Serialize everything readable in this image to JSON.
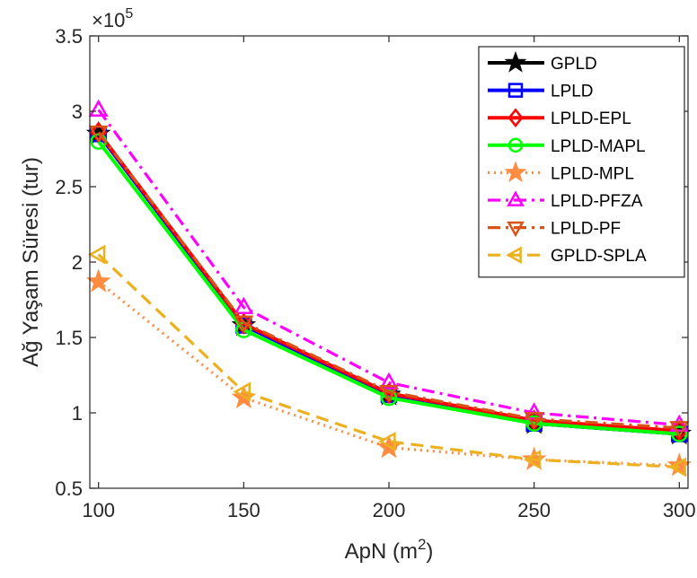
{
  "chart_data": {
    "type": "line",
    "xlabel": "ApN (m",
    "xlabel_sup": "2",
    "xlabel_suffix": ")",
    "ylabel": "Ağ Yaşam Süresi (tur)",
    "y_exponent_label": "×10",
    "y_exponent_power": "5",
    "x": [
      100,
      150,
      200,
      250,
      300
    ],
    "x_ticks": [
      100,
      150,
      200,
      250,
      300
    ],
    "y_ticks": [
      0.5,
      1,
      1.5,
      2,
      2.5,
      3,
      3.5
    ],
    "xlim": [
      97,
      303
    ],
    "ylim": [
      0.5,
      3.5
    ],
    "legend_location": "top-right",
    "grid": false,
    "series": [
      {
        "name": "GPLD",
        "values": [
          2.85,
          1.58,
          1.12,
          0.93,
          0.86
        ],
        "color": "#000000",
        "dash": "solid",
        "marker": "star"
      },
      {
        "name": "LPLD",
        "values": [
          2.85,
          1.58,
          1.12,
          0.93,
          0.86
        ],
        "color": "#0000ff",
        "dash": "solid",
        "marker": "square"
      },
      {
        "name": "LPLD-EPL",
        "values": [
          2.86,
          1.59,
          1.13,
          0.95,
          0.88
        ],
        "color": "#ff0000",
        "dash": "solid",
        "marker": "diamond"
      },
      {
        "name": "LPLD-MAPL",
        "values": [
          2.8,
          1.55,
          1.1,
          0.93,
          0.86
        ],
        "color": "#00ff00",
        "dash": "solid",
        "marker": "circle"
      },
      {
        "name": "LPLD-MPL",
        "values": [
          1.87,
          1.1,
          0.77,
          0.69,
          0.65
        ],
        "color": "#ff8c40",
        "dash": "dot",
        "marker": "star"
      },
      {
        "name": "LPLD-PFZA",
        "values": [
          3.01,
          1.7,
          1.2,
          1.0,
          0.92
        ],
        "color": "#ff00ff",
        "dash": "dashdot",
        "marker": "triangle-up"
      },
      {
        "name": "LPLD-PF",
        "values": [
          2.86,
          1.6,
          1.14,
          0.96,
          0.9
        ],
        "color": "#d95319",
        "dash": "dashdot",
        "marker": "triangle-down"
      },
      {
        "name": "GPLD-SPLA",
        "values": [
          2.05,
          1.14,
          0.81,
          0.69,
          0.64
        ],
        "color": "#edb120",
        "dash": "dash",
        "marker": "triangle-left"
      }
    ]
  }
}
